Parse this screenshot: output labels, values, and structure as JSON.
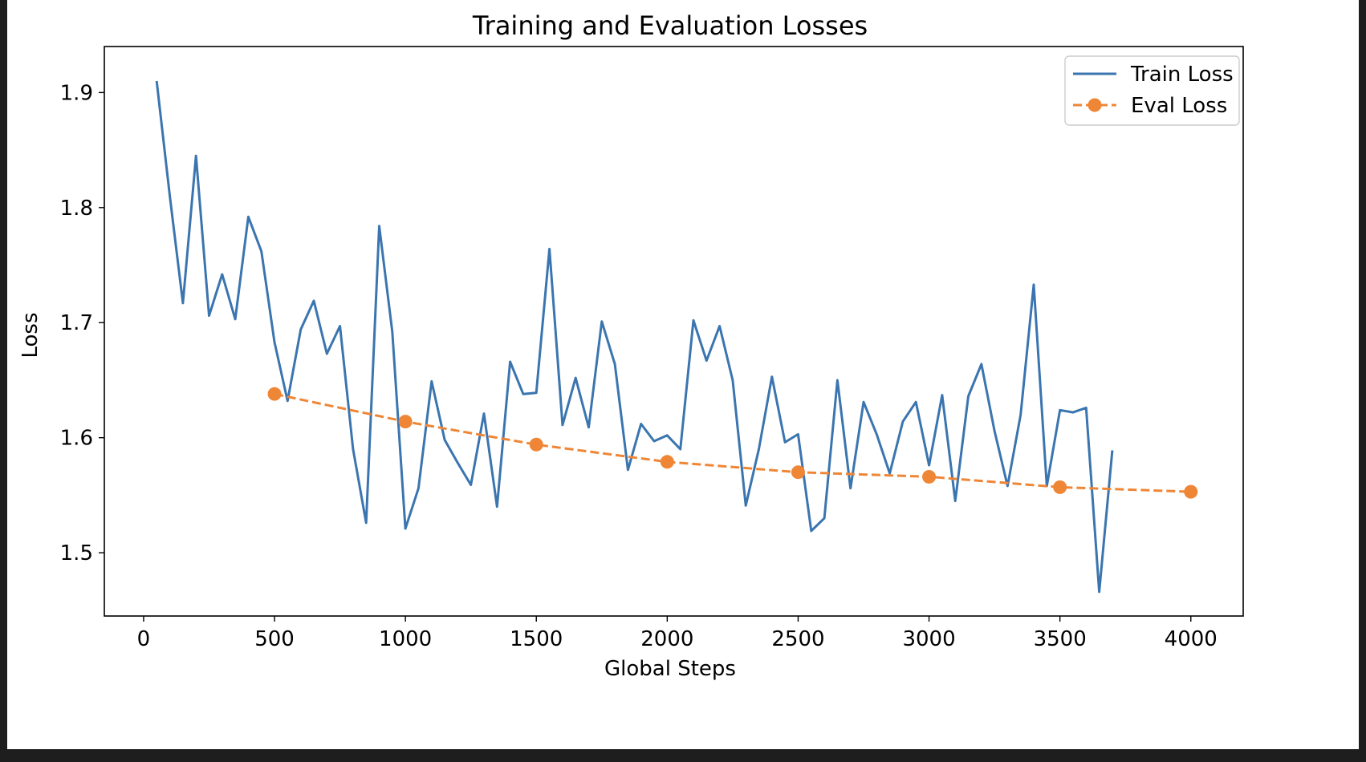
{
  "chart_data": {
    "type": "line",
    "title": "Training and Evaluation Losses",
    "xlabel": "Global Steps",
    "ylabel": "Loss",
    "xlim": [
      -150,
      4200
    ],
    "ylim": [
      1.445,
      1.94
    ],
    "xticks": [
      0,
      500,
      1000,
      1500,
      2000,
      2500,
      3000,
      3500,
      4000
    ],
    "yticks": [
      1.5,
      1.6,
      1.7,
      1.8,
      1.9
    ],
    "ytick_labels": [
      "1.5",
      "1.6",
      "1.7",
      "1.8",
      "1.9"
    ],
    "grid": false,
    "legend_position": "top-right",
    "series": [
      {
        "name": "Train Loss",
        "color": "#3b75af",
        "style": "solid",
        "marker": "none",
        "x": [
          50,
          100,
          150,
          200,
          250,
          300,
          350,
          400,
          450,
          500,
          550,
          600,
          650,
          700,
          750,
          800,
          850,
          900,
          950,
          1000,
          1050,
          1100,
          1150,
          1200,
          1250,
          1300,
          1350,
          1400,
          1450,
          1500,
          1550,
          1600,
          1650,
          1700,
          1750,
          1800,
          1850,
          1900,
          1950,
          2000,
          2050,
          2100,
          2150,
          2200,
          2250,
          2300,
          2350,
          2400,
          2450,
          2500,
          2550,
          2600,
          2650,
          2700,
          2750,
          2800,
          2850,
          2900,
          2950,
          3000,
          3050,
          3100,
          3150,
          3200,
          3250,
          3300,
          3350,
          3400,
          3450,
          3500,
          3550,
          3600,
          3650,
          3700
        ],
        "values": [
          1.91,
          1.81,
          1.717,
          1.845,
          1.706,
          1.742,
          1.703,
          1.792,
          1.762,
          1.683,
          1.632,
          1.694,
          1.719,
          1.673,
          1.697,
          1.59,
          1.526,
          1.784,
          1.692,
          1.521,
          1.556,
          1.649,
          1.598,
          1.578,
          1.559,
          1.621,
          1.54,
          1.666,
          1.638,
          1.639,
          1.764,
          1.611,
          1.652,
          1.609,
          1.701,
          1.664,
          1.572,
          1.612,
          1.597,
          1.602,
          1.59,
          1.702,
          1.667,
          1.697,
          1.65,
          1.541,
          1.59,
          1.653,
          1.596,
          1.603,
          1.519,
          1.53,
          1.65,
          1.556,
          1.631,
          1.603,
          1.569,
          1.614,
          1.631,
          1.576,
          1.637,
          1.545,
          1.636,
          1.664,
          1.606,
          1.558,
          1.62,
          1.733,
          1.558,
          1.624,
          1.622,
          1.626,
          1.466,
          1.589
        ]
      },
      {
        "name": "Eval Loss",
        "color": "#ef8636",
        "style": "dashed",
        "marker": "circle",
        "x": [
          500,
          1000,
          1500,
          2000,
          2500,
          3000,
          3500,
          4000
        ],
        "values": [
          1.638,
          1.614,
          1.594,
          1.579,
          1.57,
          1.566,
          1.557,
          1.553
        ]
      }
    ]
  }
}
